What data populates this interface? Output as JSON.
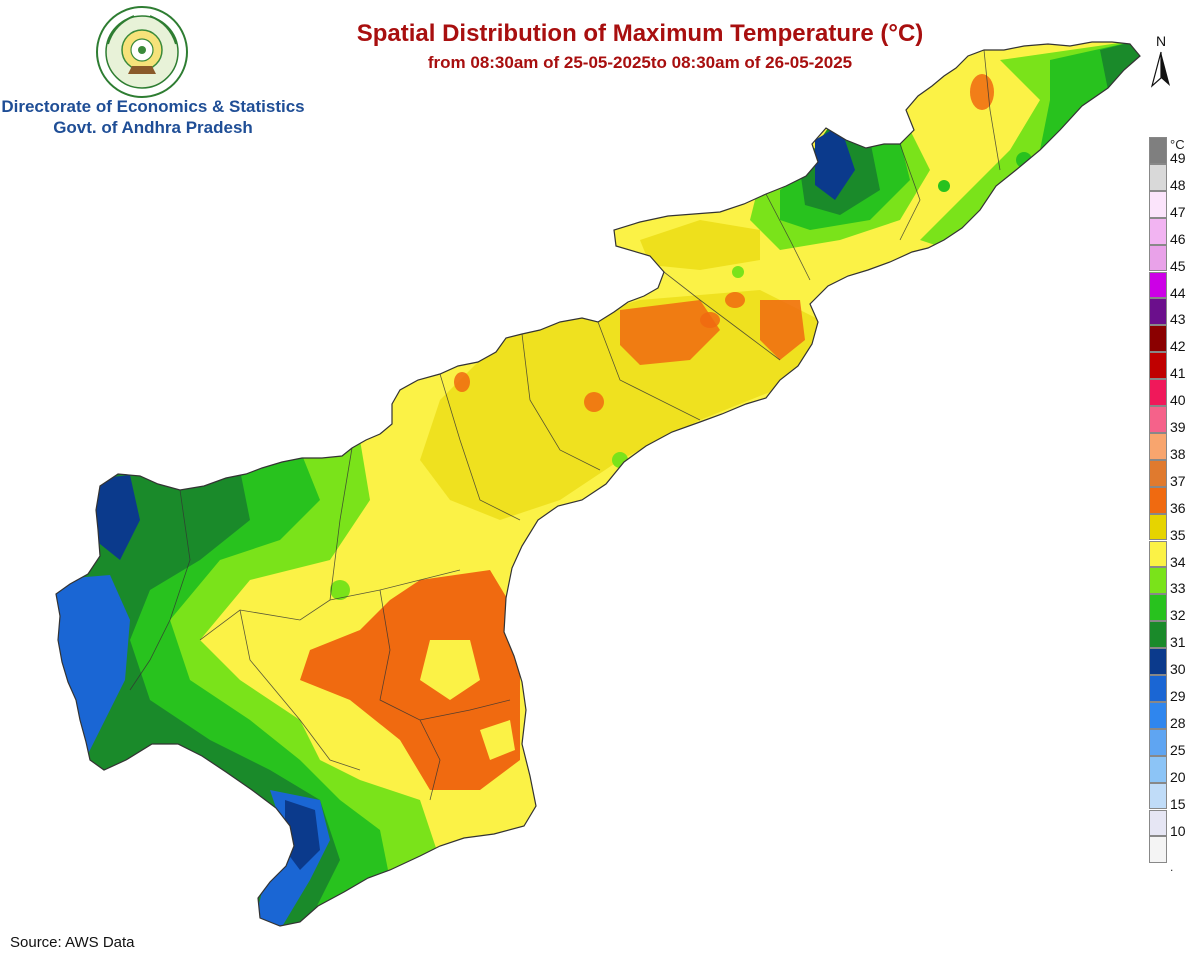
{
  "header": {
    "title": "Spatial Distribution of Maximum Temperature (°C)",
    "subtitle": "from 08:30am of 25-05-2025to 08:30am of 26-05-2025"
  },
  "org": {
    "line1": "Directorate of Economics & Statistics",
    "line2": "Govt. of Andhra Pradesh",
    "emblem_text_top": "ఆంధ్రప్రదేశ్ ప్రభుత్వం",
    "emblem_text_bottom": "సత్యమేవ జయతే"
  },
  "north_label": "N",
  "legend": {
    "unit": "°C",
    "items": [
      {
        "label": "49",
        "color": "#7f7f7f"
      },
      {
        "label": "48",
        "color": "#d9d9d9"
      },
      {
        "label": "47",
        "color": "#fbe4fb"
      },
      {
        "label": "46",
        "color": "#f2b4f2"
      },
      {
        "label": "45",
        "color": "#e9a2e9"
      },
      {
        "label": "44",
        "color": "#cc00e6"
      },
      {
        "label": "43",
        "color": "#6b0f8c"
      },
      {
        "label": "42",
        "color": "#8b0000"
      },
      {
        "label": "41",
        "color": "#c00000"
      },
      {
        "label": "40",
        "color": "#f0185a"
      },
      {
        "label": "39",
        "color": "#f5628a"
      },
      {
        "label": "38",
        "color": "#f8a56e"
      },
      {
        "label": "37",
        "color": "#e07a2e"
      },
      {
        "label": "36",
        "color": "#f06a10"
      },
      {
        "label": "35",
        "color": "#e6d400"
      },
      {
        "label": "34",
        "color": "#fbf246"
      },
      {
        "label": "33",
        "color": "#7ae31a"
      },
      {
        "label": "32",
        "color": "#28c21e"
      },
      {
        "label": "31",
        "color": "#1a8a2a"
      },
      {
        "label": "30",
        "color": "#0b3a8c"
      },
      {
        "label": "29",
        "color": "#1a66d4"
      },
      {
        "label": "28",
        "color": "#2f86ee"
      },
      {
        "label": "25",
        "color": "#5fa5f2"
      },
      {
        "label": "20",
        "color": "#8cc4f6"
      },
      {
        "label": "15",
        "color": "#c0dcf8"
      },
      {
        "label": "10",
        "color": "#e6e6f4"
      },
      {
        "label": "",
        "color": "#f4f4f4"
      }
    ],
    "trailing": "."
  },
  "source": "Source: AWS Data"
}
